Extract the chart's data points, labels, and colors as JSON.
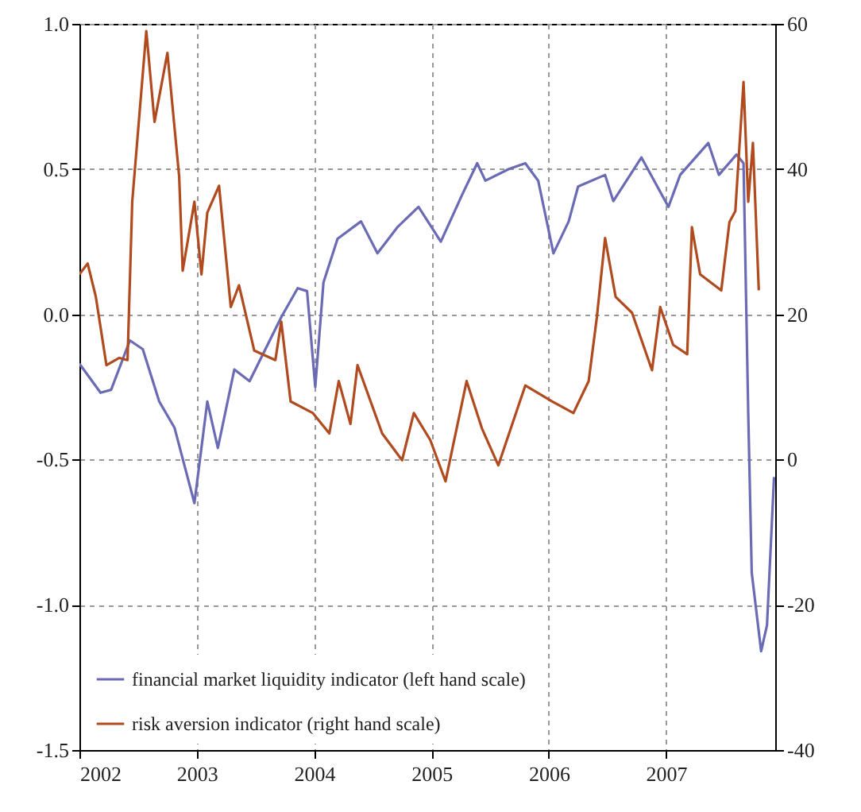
{
  "chart_data": {
    "type": "line",
    "xlim": [
      2002,
      2007.93
    ],
    "xticks": [
      2002,
      2003,
      2004,
      2005,
      2006,
      2007
    ],
    "ylim": [
      -1.5,
      1.0
    ],
    "yticks": [
      {
        "value": 1.0,
        "label": "1.0"
      },
      {
        "value": 0.5,
        "label": "0.5"
      },
      {
        "value": 0,
        "label": "0.0"
      },
      {
        "value": -0.5,
        "label": "-0.5"
      },
      {
        "value": -1.0,
        "label": "-1.0"
      },
      {
        "value": -1.5,
        "label": "-1.5"
      }
    ],
    "y2lim": [
      -40,
      60
    ],
    "y2ticks": [
      60,
      40,
      20,
      0,
      -20,
      -40
    ],
    "grid": true,
    "legend": "bottom left",
    "line_style": "solid",
    "series": [
      {
        "name": "financial market liquidity indicator (left hand scale)",
        "color": "#6b6bb5",
        "x": [
          2002.0,
          2002.18,
          2002.27,
          2002.43,
          2002.54,
          2002.68,
          2002.81,
          2002.98,
          2003.09,
          2003.18,
          2003.32,
          2003.45,
          2003.72,
          2003.86,
          2003.94,
          2004.01,
          2004.08,
          2004.2,
          2004.4,
          2004.54,
          2004.71,
          2004.89,
          2005.08,
          2005.26,
          2005.39,
          2005.46,
          2005.66,
          2005.8,
          2005.91,
          2006.04,
          2006.17,
          2006.25,
          2006.48,
          2006.55,
          2006.79,
          2007.02,
          2007.12,
          2007.36,
          2007.45,
          2007.6,
          2007.66,
          2007.7,
          2007.73,
          2007.81,
          2007.86,
          2007.92
        ],
        "values": [
          -0.17,
          -0.27,
          -0.26,
          -0.09,
          -0.12,
          -0.3,
          -0.39,
          -0.65,
          -0.3,
          -0.46,
          -0.19,
          -0.23,
          -0.01,
          0.09,
          0.08,
          -0.25,
          0.11,
          0.26,
          0.32,
          0.21,
          0.3,
          0.37,
          0.25,
          0.41,
          0.52,
          0.46,
          0.5,
          0.52,
          0.46,
          0.21,
          0.32,
          0.44,
          0.48,
          0.39,
          0.54,
          0.37,
          0.48,
          0.59,
          0.48,
          0.55,
          0.52,
          -0.34,
          -0.89,
          -1.16,
          -1.07,
          -0.56
        ]
      },
      {
        "name": "risk aversion indicator (right hand scale)",
        "color": "#b04a1f",
        "axis": "y2",
        "x": [
          2002.0,
          2002.07,
          2002.14,
          2002.23,
          2002.34,
          2002.41,
          2002.45,
          2002.57,
          2002.64,
          2002.75,
          2002.85,
          2002.88,
          2002.98,
          2003.04,
          2003.09,
          2003.19,
          2003.29,
          2003.36,
          2003.49,
          2003.67,
          2003.72,
          2003.8,
          2003.99,
          2004.13,
          2004.21,
          2004.31,
          2004.37,
          2004.58,
          2004.75,
          2004.85,
          2004.99,
          2005.12,
          2005.3,
          2005.43,
          2005.57,
          2005.8,
          2006.03,
          2006.21,
          2006.34,
          2006.41,
          2006.48,
          2006.57,
          2006.71,
          2006.88,
          2006.95,
          2007.06,
          2007.18,
          2007.22,
          2007.29,
          2007.47,
          2007.54,
          2007.59,
          2007.66,
          2007.7,
          2007.74,
          2007.79
        ],
        "values": [
          25.5,
          27,
          22.4,
          13,
          14,
          13.7,
          35.5,
          59,
          46.5,
          56,
          39,
          26,
          35.5,
          25.5,
          34,
          37.7,
          21,
          24,
          15,
          13.7,
          19,
          8,
          6.4,
          3.6,
          10.8,
          4.9,
          13,
          3.6,
          -0.1,
          6.4,
          2.7,
          -3,
          10.8,
          4.3,
          -0.8,
          10.2,
          8,
          6.4,
          10.8,
          19.6,
          30.5,
          22.4,
          20.2,
          12.3,
          21,
          15.8,
          14.5,
          32,
          25.5,
          23.3,
          32.7,
          34.2,
          52,
          35.5,
          43.6,
          23.3
        ]
      }
    ]
  }
}
